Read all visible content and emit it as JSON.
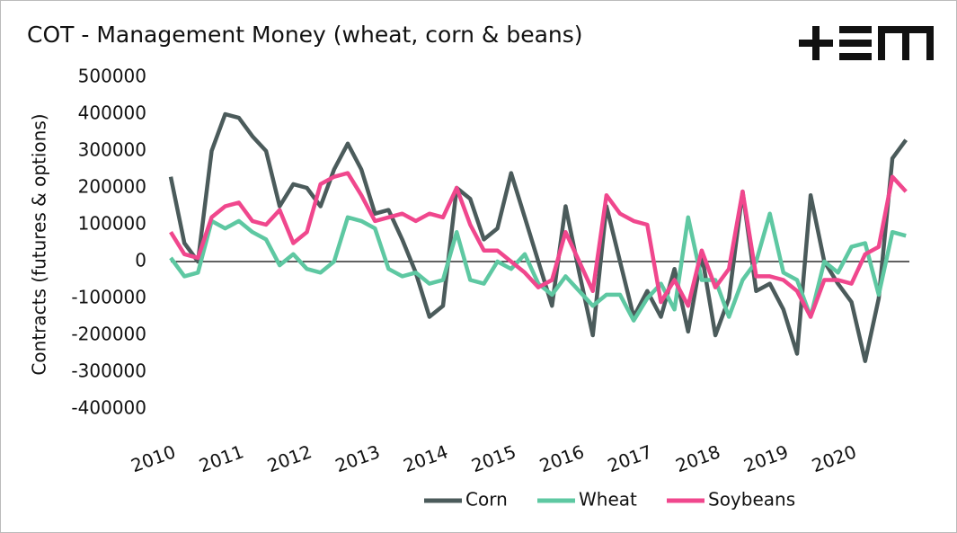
{
  "chart_data": {
    "type": "line",
    "title": "COT - Management Money (wheat, corn & beans)",
    "y_label": "Contracts (futures & options)",
    "x": [
      2010.0,
      2010.2,
      2010.4,
      2010.6,
      2010.8,
      2011.0,
      2011.2,
      2011.4,
      2011.6,
      2011.8,
      2012.0,
      2012.2,
      2012.4,
      2012.6,
      2012.8,
      2013.0,
      2013.2,
      2013.4,
      2013.6,
      2013.8,
      2014.0,
      2014.2,
      2014.4,
      2014.6,
      2014.8,
      2015.0,
      2015.2,
      2015.4,
      2015.6,
      2015.8,
      2016.0,
      2016.2,
      2016.4,
      2016.6,
      2016.8,
      2017.0,
      2017.2,
      2017.4,
      2017.6,
      2017.8,
      2018.0,
      2018.2,
      2018.4,
      2018.6,
      2018.8,
      2019.0,
      2019.2,
      2019.4,
      2019.6,
      2019.8,
      2020.0,
      2020.2,
      2020.4,
      2020.6,
      2020.8
    ],
    "series": [
      {
        "name": "Corn",
        "color": "#4b5b5b",
        "values": [
          230000,
          50000,
          0,
          300000,
          400000,
          390000,
          340000,
          300000,
          150000,
          210000,
          200000,
          150000,
          250000,
          320000,
          250000,
          130000,
          140000,
          60000,
          -30000,
          -150000,
          -120000,
          200000,
          170000,
          60000,
          90000,
          240000,
          120000,
          0,
          -120000,
          150000,
          -30000,
          -200000,
          150000,
          0,
          -150000,
          -80000,
          -150000,
          -20000,
          -190000,
          20000,
          -200000,
          -100000,
          190000,
          -80000,
          -60000,
          -130000,
          -250000,
          180000,
          0,
          -60000,
          -110000,
          -270000,
          -100000,
          280000,
          330000
        ]
      },
      {
        "name": "Wheat",
        "color": "#5ec8a2",
        "values": [
          10000,
          -40000,
          -30000,
          110000,
          90000,
          110000,
          80000,
          60000,
          -10000,
          20000,
          -20000,
          -30000,
          0,
          120000,
          110000,
          90000,
          -20000,
          -40000,
          -30000,
          -60000,
          -50000,
          80000,
          -50000,
          -60000,
          0,
          -20000,
          20000,
          -60000,
          -90000,
          -40000,
          -80000,
          -120000,
          -90000,
          -90000,
          -160000,
          -100000,
          -60000,
          -130000,
          120000,
          -50000,
          -50000,
          -150000,
          -50000,
          0,
          130000,
          -30000,
          -50000,
          -150000,
          0,
          -30000,
          40000,
          50000,
          -90000,
          80000,
          70000
        ]
      },
      {
        "name": "Soybeans",
        "color": "#f0478d",
        "values": [
          80000,
          20000,
          10000,
          120000,
          150000,
          160000,
          110000,
          100000,
          140000,
          50000,
          80000,
          210000,
          230000,
          240000,
          180000,
          110000,
          120000,
          130000,
          110000,
          130000,
          120000,
          200000,
          100000,
          30000,
          30000,
          0,
          -30000,
          -70000,
          -50000,
          80000,
          0,
          -80000,
          180000,
          130000,
          110000,
          100000,
          -110000,
          -50000,
          -120000,
          30000,
          -70000,
          -20000,
          190000,
          -40000,
          -40000,
          -50000,
          -80000,
          -150000,
          -50000,
          -50000,
          -60000,
          20000,
          40000,
          230000,
          190000
        ]
      }
    ],
    "xlim": [
      2010,
      2020.85
    ],
    "xticks": [
      2010,
      2011,
      2012,
      2013,
      2014,
      2015,
      2016,
      2017,
      2018,
      2019,
      2020
    ],
    "ylim": [
      -400000,
      500000
    ],
    "yticks": [
      -400000,
      -300000,
      -200000,
      -100000,
      0,
      100000,
      200000,
      300000,
      400000,
      500000
    ],
    "zero_line": true,
    "legend": "bottom"
  }
}
